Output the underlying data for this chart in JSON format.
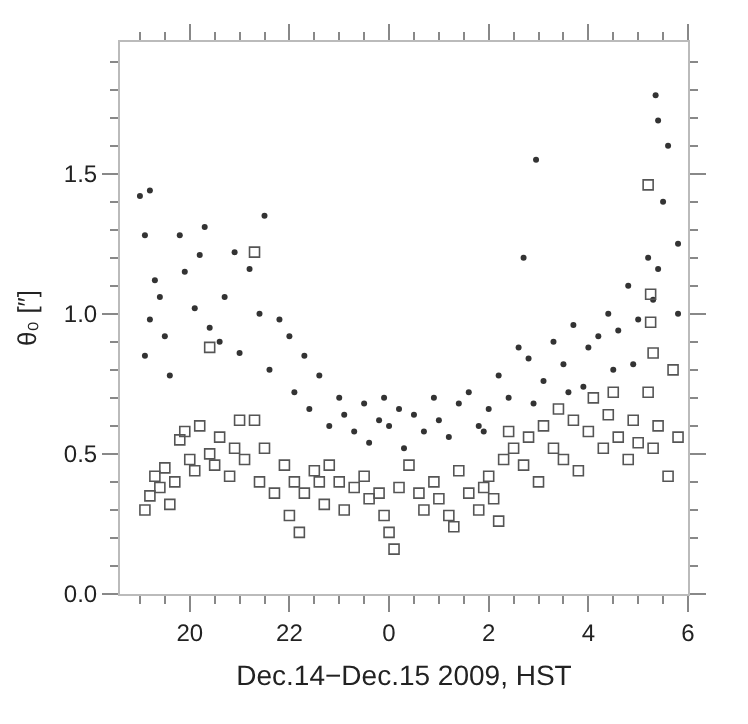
{
  "chart_data": {
    "type": "scatter",
    "xlabel": "Dec.14−Dec.15 2009, HST",
    "ylabel": "θ₀ [″]",
    "xlim": [
      "2009-12-14T18:36",
      "2009-12-15T06:00"
    ],
    "ylim": [
      0,
      1.97
    ],
    "xticks": [
      {
        "value": "2009-12-14T19:00",
        "label": null
      },
      {
        "value": "2009-12-14T19:30",
        "label": null
      },
      {
        "value": "2009-12-14T20:00",
        "label": "20"
      },
      {
        "value": "2009-12-14T20:30",
        "label": null
      },
      {
        "value": "2009-12-14T21:00",
        "label": null
      },
      {
        "value": "2009-12-14T21:30",
        "label": null
      },
      {
        "value": "2009-12-14T22:00",
        "label": "22"
      },
      {
        "value": "2009-12-14T22:30",
        "label": null
      },
      {
        "value": "2009-12-14T23:00",
        "label": null
      },
      {
        "value": "2009-12-14T23:30",
        "label": null
      },
      {
        "value": "2009-12-15T00:00",
        "label": "0"
      },
      {
        "value": "2009-12-15T00:30",
        "label": null
      },
      {
        "value": "2009-12-15T01:00",
        "label": null
      },
      {
        "value": "2009-12-15T01:30",
        "label": null
      },
      {
        "value": "2009-12-15T02:00",
        "label": "2"
      },
      {
        "value": "2009-12-15T02:30",
        "label": null
      },
      {
        "value": "2009-12-15T03:00",
        "label": null
      },
      {
        "value": "2009-12-15T03:30",
        "label": null
      },
      {
        "value": "2009-12-15T04:00",
        "label": "4"
      },
      {
        "value": "2009-12-15T04:30",
        "label": null
      },
      {
        "value": "2009-12-15T05:00",
        "label": null
      },
      {
        "value": "2009-12-15T05:30",
        "label": null
      },
      {
        "value": "2009-12-15T06:00",
        "label": "6"
      }
    ],
    "yticks": [
      {
        "value": 0,
        "label": "0.0"
      },
      {
        "value": 0.1,
        "label": null
      },
      {
        "value": 0.2,
        "label": null
      },
      {
        "value": 0.3,
        "label": null
      },
      {
        "value": 0.4,
        "label": null
      },
      0.5,
      {
        "value": 0.6,
        "label": null
      },
      {
        "value": 0.7,
        "label": null
      },
      {
        "value": 0.8,
        "label": null
      },
      {
        "value": 0.9,
        "label": null
      },
      {
        "value": 1,
        "label": "1.0"
      },
      {
        "value": 1.1,
        "label": null
      },
      {
        "value": 1.2,
        "label": null
      },
      {
        "value": 1.3,
        "label": null
      },
      {
        "value": 1.4,
        "label": null
      },
      1.5,
      {
        "value": 1.6,
        "label": null
      },
      {
        "value": 1.7,
        "label": null
      },
      {
        "value": 1.8,
        "label": null
      },
      {
        "value": 1.9,
        "label": null
      }
    ],
    "grid": false,
    "series": [
      {
        "marker": "circle",
        "color": "#333333",
        "x": [
          "2009-12-14T19:00",
          "2009-12-14T19:12",
          "2009-12-14T19:06",
          "2009-12-14T19:18",
          "2009-12-14T19:24",
          "2009-12-14T19:12",
          "2009-12-14T19:30",
          "2009-12-14T19:06",
          "2009-12-14T19:36",
          "2009-12-14T19:48",
          "2009-12-14T19:54",
          "2009-12-14T20:06",
          "2009-12-14T20:12",
          "2009-12-14T20:18",
          "2009-12-14T20:24",
          "2009-12-14T20:36",
          "2009-12-14T20:42",
          "2009-12-14T20:54",
          "2009-12-14T21:00",
          "2009-12-14T21:12",
          "2009-12-14T21:24",
          "2009-12-14T21:30",
          "2009-12-14T21:36",
          "2009-12-14T21:48",
          "2009-12-14T22:00",
          "2009-12-14T22:06",
          "2009-12-14T22:18",
          "2009-12-14T22:24",
          "2009-12-14T22:36",
          "2009-12-14T22:48",
          "2009-12-14T23:00",
          "2009-12-14T23:06",
          "2009-12-14T23:18",
          "2009-12-14T23:30",
          "2009-12-14T23:36",
          "2009-12-14T23:48",
          "2009-12-15T00:00",
          "2009-12-15T00:12",
          "2009-12-15T00:18",
          "2009-12-15T00:30",
          "2009-12-15T00:42",
          "2009-12-15T00:54",
          "2009-12-15T01:00",
          "2009-12-15T01:12",
          "2009-12-15T01:24",
          "2009-12-15T01:36",
          "2009-12-15T01:48",
          "2009-12-15T02:00",
          "2009-12-15T02:12",
          "2009-12-15T02:24",
          "2009-12-15T02:36",
          "2009-12-15T02:42",
          "2009-12-15T02:48",
          "2009-12-15T02:57",
          "2009-12-15T03:06",
          "2009-12-15T03:18",
          "2009-12-15T03:30",
          "2009-12-15T03:42",
          "2009-12-15T03:54",
          "2009-12-15T04:00",
          "2009-12-15T04:12",
          "2009-12-15T04:24",
          "2009-12-15T04:36",
          "2009-12-15T04:48",
          "2009-12-15T05:00",
          "2009-12-15T05:12",
          "2009-12-15T05:18",
          "2009-12-15T05:24",
          "2009-12-15T05:30",
          "2009-12-15T05:36",
          "2009-12-15T05:24",
          "2009-12-15T05:21",
          "2009-12-15T05:48",
          "2009-12-15T05:48",
          "2009-12-15T04:54",
          "2009-12-15T04:30",
          "2009-12-15T03:36",
          "2009-12-15T02:54",
          "2009-12-15T01:54",
          "2009-12-14T23:54"
        ],
        "values": [
          1.42,
          1.44,
          1.28,
          1.12,
          1.06,
          0.98,
          0.92,
          0.85,
          0.78,
          1.28,
          1.15,
          1.02,
          1.21,
          1.31,
          0.95,
          0.9,
          1.06,
          1.22,
          0.86,
          1.16,
          1.0,
          1.35,
          0.8,
          0.98,
          0.92,
          0.72,
          0.85,
          0.66,
          0.78,
          0.6,
          0.7,
          0.64,
          0.58,
          0.68,
          0.54,
          0.62,
          0.6,
          0.66,
          0.52,
          0.64,
          0.58,
          0.7,
          0.62,
          0.56,
          0.68,
          0.72,
          0.6,
          0.66,
          0.78,
          0.7,
          0.88,
          1.2,
          0.84,
          1.55,
          0.76,
          0.9,
          0.82,
          0.96,
          0.74,
          0.88,
          0.92,
          1.0,
          0.94,
          1.1,
          0.98,
          1.2,
          1.05,
          1.16,
          1.4,
          1.6,
          1.69,
          1.78,
          1.25,
          1.0,
          0.82,
          0.8,
          0.72,
          0.68,
          0.58,
          0.7
        ]
      },
      {
        "marker": "square",
        "color": "#555555",
        "x": [
          "2009-12-14T19:06",
          "2009-12-14T19:12",
          "2009-12-14T19:18",
          "2009-12-14T19:24",
          "2009-12-14T19:30",
          "2009-12-14T19:36",
          "2009-12-14T19:42",
          "2009-12-14T19:48",
          "2009-12-14T19:54",
          "2009-12-14T20:00",
          "2009-12-14T20:06",
          "2009-12-14T20:12",
          "2009-12-14T20:24",
          "2009-12-14T20:30",
          "2009-12-14T20:36",
          "2009-12-14T20:48",
          "2009-12-14T20:54",
          "2009-12-14T21:00",
          "2009-12-14T21:06",
          "2009-12-14T21:18",
          "2009-12-14T21:24",
          "2009-12-14T21:30",
          "2009-12-14T21:42",
          "2009-12-14T21:54",
          "2009-12-14T22:00",
          "2009-12-14T22:06",
          "2009-12-14T22:12",
          "2009-12-14T22:18",
          "2009-12-14T22:30",
          "2009-12-14T22:36",
          "2009-12-14T22:42",
          "2009-12-14T22:48",
          "2009-12-14T23:00",
          "2009-12-14T23:06",
          "2009-12-14T23:18",
          "2009-12-14T23:30",
          "2009-12-14T23:36",
          "2009-12-14T23:48",
          "2009-12-14T23:54",
          "2009-12-15T00:00",
          "2009-12-15T00:06",
          "2009-12-15T00:12",
          "2009-12-15T00:24",
          "2009-12-15T00:36",
          "2009-12-15T00:42",
          "2009-12-15T00:54",
          "2009-12-15T01:00",
          "2009-12-15T01:12",
          "2009-12-15T01:18",
          "2009-12-15T01:24",
          "2009-12-15T01:36",
          "2009-12-15T01:48",
          "2009-12-15T01:54",
          "2009-12-15T02:00",
          "2009-12-15T02:06",
          "2009-12-15T02:12",
          "2009-12-15T02:18",
          "2009-12-15T02:24",
          "2009-12-15T02:30",
          "2009-12-15T02:42",
          "2009-12-15T02:48",
          "2009-12-15T03:00",
          "2009-12-15T03:06",
          "2009-12-15T03:18",
          "2009-12-15T03:24",
          "2009-12-15T03:30",
          "2009-12-15T03:42",
          "2009-12-15T03:48",
          "2009-12-15T04:00",
          "2009-12-15T04:06",
          "2009-12-15T04:18",
          "2009-12-15T04:24",
          "2009-12-15T04:36",
          "2009-12-15T04:48",
          "2009-12-15T04:54",
          "2009-12-15T05:00",
          "2009-12-15T05:12",
          "2009-12-15T05:18",
          "2009-12-15T05:24",
          "2009-12-15T05:36",
          "2009-12-15T05:42",
          "2009-12-15T05:48",
          "2009-12-15T05:15",
          "2009-12-15T05:15",
          "2009-12-15T05:18",
          "2009-12-15T04:30",
          "2009-12-15T05:12",
          "2009-12-14T20:24",
          "2009-12-14T21:18"
        ],
        "values": [
          0.3,
          0.35,
          0.42,
          0.38,
          0.45,
          0.32,
          0.4,
          0.55,
          0.58,
          0.48,
          0.44,
          0.6,
          0.5,
          0.46,
          0.56,
          0.42,
          0.52,
          0.62,
          0.48,
          0.62,
          0.4,
          0.52,
          0.36,
          0.46,
          0.28,
          0.4,
          0.22,
          0.36,
          0.44,
          0.4,
          0.32,
          0.46,
          0.4,
          0.3,
          0.38,
          0.42,
          0.34,
          0.36,
          0.28,
          0.22,
          0.16,
          0.38,
          0.46,
          0.36,
          0.3,
          0.4,
          0.34,
          0.28,
          0.24,
          0.44,
          0.36,
          0.3,
          0.38,
          0.42,
          0.34,
          0.26,
          0.48,
          0.58,
          0.52,
          0.46,
          0.56,
          0.4,
          0.6,
          0.52,
          0.66,
          0.48,
          0.62,
          0.44,
          0.58,
          0.7,
          0.52,
          0.64,
          0.56,
          0.48,
          0.62,
          0.54,
          0.72,
          0.52,
          0.6,
          0.42,
          0.8,
          0.56,
          1.07,
          0.97,
          0.86,
          0.72,
          1.46,
          0.88,
          1.22
        ]
      }
    ]
  }
}
